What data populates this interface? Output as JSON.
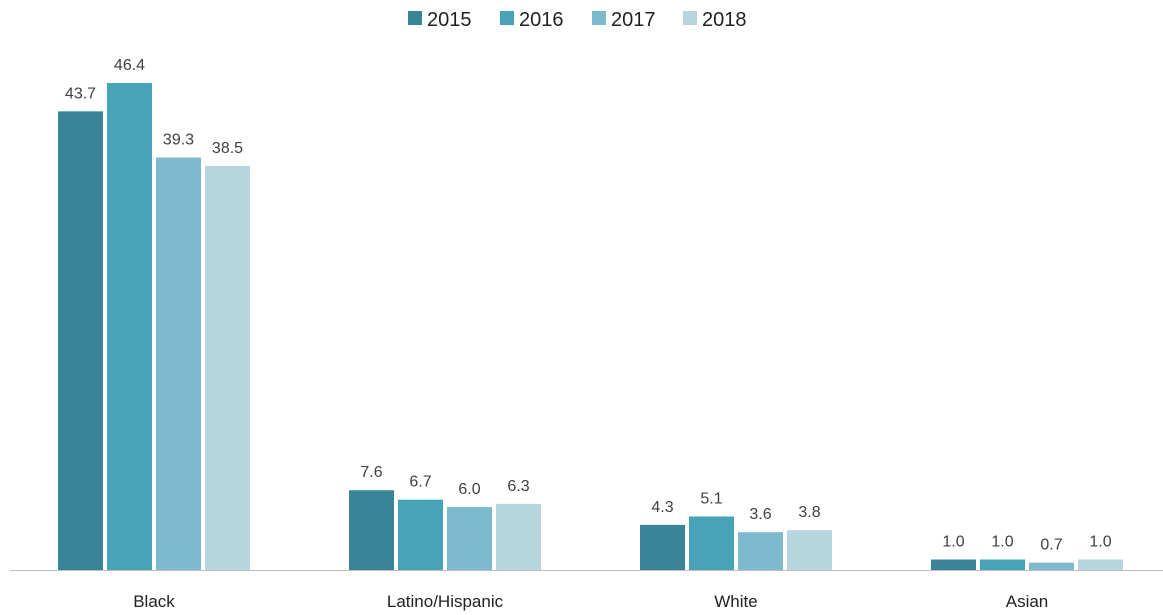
{
  "chart_data": {
    "type": "bar",
    "title": "",
    "xlabel": "",
    "ylabel": "",
    "categories": [
      "Black",
      "Latino/Hispanic",
      "White",
      "Asian"
    ],
    "series": [
      {
        "name": "2015",
        "color": "#3a8497",
        "values": [
          43.7,
          7.6,
          4.3,
          1.0
        ],
        "labels": [
          "43.7",
          "7.6",
          "4.3",
          "1.0"
        ]
      },
      {
        "name": "2016",
        "color": "#48a3b9",
        "values": [
          46.4,
          6.7,
          5.1,
          1.0
        ],
        "labels": [
          "46.4",
          "6.7",
          "5.1",
          "1.0"
        ]
      },
      {
        "name": "2017",
        "color": "#7dbace",
        "values": [
          39.3,
          6.0,
          3.6,
          0.7
        ],
        "labels": [
          "39.3",
          "6.0",
          "3.6",
          "0.7"
        ]
      },
      {
        "name": "2018",
        "color": "#b7d5df",
        "values": [
          38.5,
          6.3,
          3.8,
          1.0
        ],
        "labels": [
          "38.5",
          "6.3",
          "3.8",
          "1.0"
        ]
      }
    ],
    "ylim": [
      0,
      46.4
    ],
    "grid": false,
    "legend_position": "top-center",
    "axis_color": "#bfbfbf"
  }
}
